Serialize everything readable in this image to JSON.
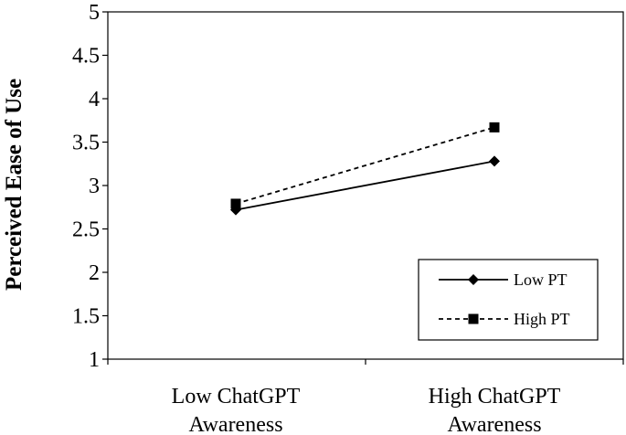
{
  "chart_data": {
    "type": "line",
    "ylabel": "Perceived Ease of Use",
    "xlabel": "",
    "ylim": [
      1,
      5
    ],
    "yticks": [
      "1",
      "1.5",
      "2",
      "2.5",
      "3",
      "3.5",
      "4",
      "4.5",
      "5"
    ],
    "categories": [
      [
        "Low ChatGPT",
        "Awareness"
      ],
      [
        "High ChatGPT",
        "Awareness"
      ]
    ],
    "series": [
      {
        "name": "Low PT",
        "marker": "diamond",
        "dash": "solid",
        "values": [
          2.72,
          3.28
        ]
      },
      {
        "name": "High PT",
        "marker": "square",
        "dash": "dashed",
        "values": [
          2.79,
          3.67
        ]
      }
    ],
    "legend_position": "bottom-right",
    "grid": false
  }
}
